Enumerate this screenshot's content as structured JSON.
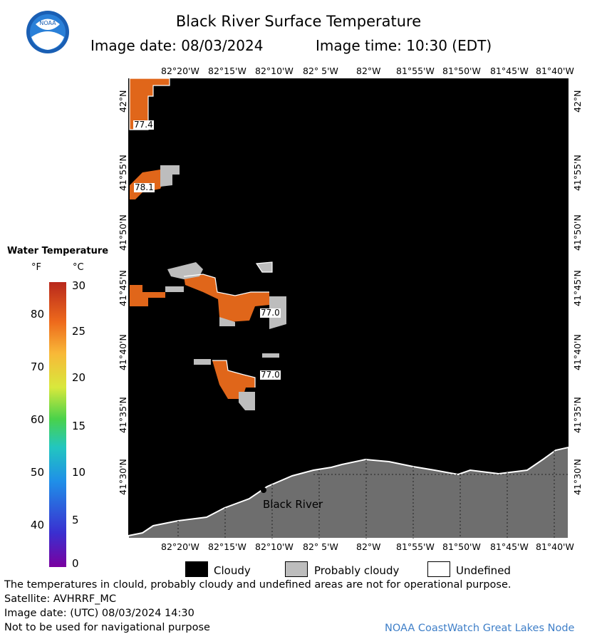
{
  "header": {
    "title": "Black River Surface Temperature",
    "date_text": "Image date: 08/03/2024",
    "time_text": "Image time: 10:30 (EDT)"
  },
  "logo": {
    "text": "NOAA",
    "icon": "noaa-logo-icon"
  },
  "axes": {
    "top_lon": [
      "82°20'W",
      "82°15'W",
      "82°10'W",
      "82° 5'W",
      "82°W",
      "81°55'W",
      "81°50'W",
      "81°45'W",
      "81°40'W"
    ],
    "bottom_lon": [
      "82°20'W",
      "82°15'W",
      "82°10'W",
      "82° 5'W",
      "82°W",
      "81°55'W",
      "81°50'W",
      "81°45'W",
      "81°40'W"
    ],
    "left_lat": [
      "42°N",
      "41°55'N",
      "41°50'N",
      "41°45'N",
      "41°40'N",
      "41°35'N",
      "41°30'N"
    ],
    "right_lat": [
      "42°N",
      "41°55'N",
      "41°50'N",
      "41°45'N",
      "41°40'N",
      "41°35'N",
      "41°30'N"
    ]
  },
  "temperature_legend": {
    "title": "Water Temperature",
    "unit_f": "°F",
    "unit_c": "°C",
    "f_ticks": [
      "80",
      "70",
      "60",
      "50",
      "40"
    ],
    "c_ticks": [
      "30",
      "25",
      "20",
      "15",
      "10",
      "5",
      "0"
    ]
  },
  "map": {
    "labels": [
      "77.4",
      "78.1",
      "77.0",
      "77.0"
    ],
    "place_name": "Black River",
    "colors": {
      "water_no_data": "#000000",
      "land": "#6e6e6e",
      "warm": "#e0661a",
      "cloud_probable": "#bdbdbd"
    }
  },
  "cloud_legend": {
    "cloudy": "Cloudy",
    "probably_cloudy": "Probably cloudy",
    "undefined": "Undefined"
  },
  "footer": {
    "line1": "The temperatures in clould, probably cloudy and undefined areas are not for operational purpose.",
    "line2": "Satellite: AVHRRF_MC",
    "line3": "Image date: (UTC) 08/03/2024  14:30",
    "line4": "Not to be used for navigational purpose",
    "credit": "NOAA CoastWatch Great Lakes Node"
  }
}
